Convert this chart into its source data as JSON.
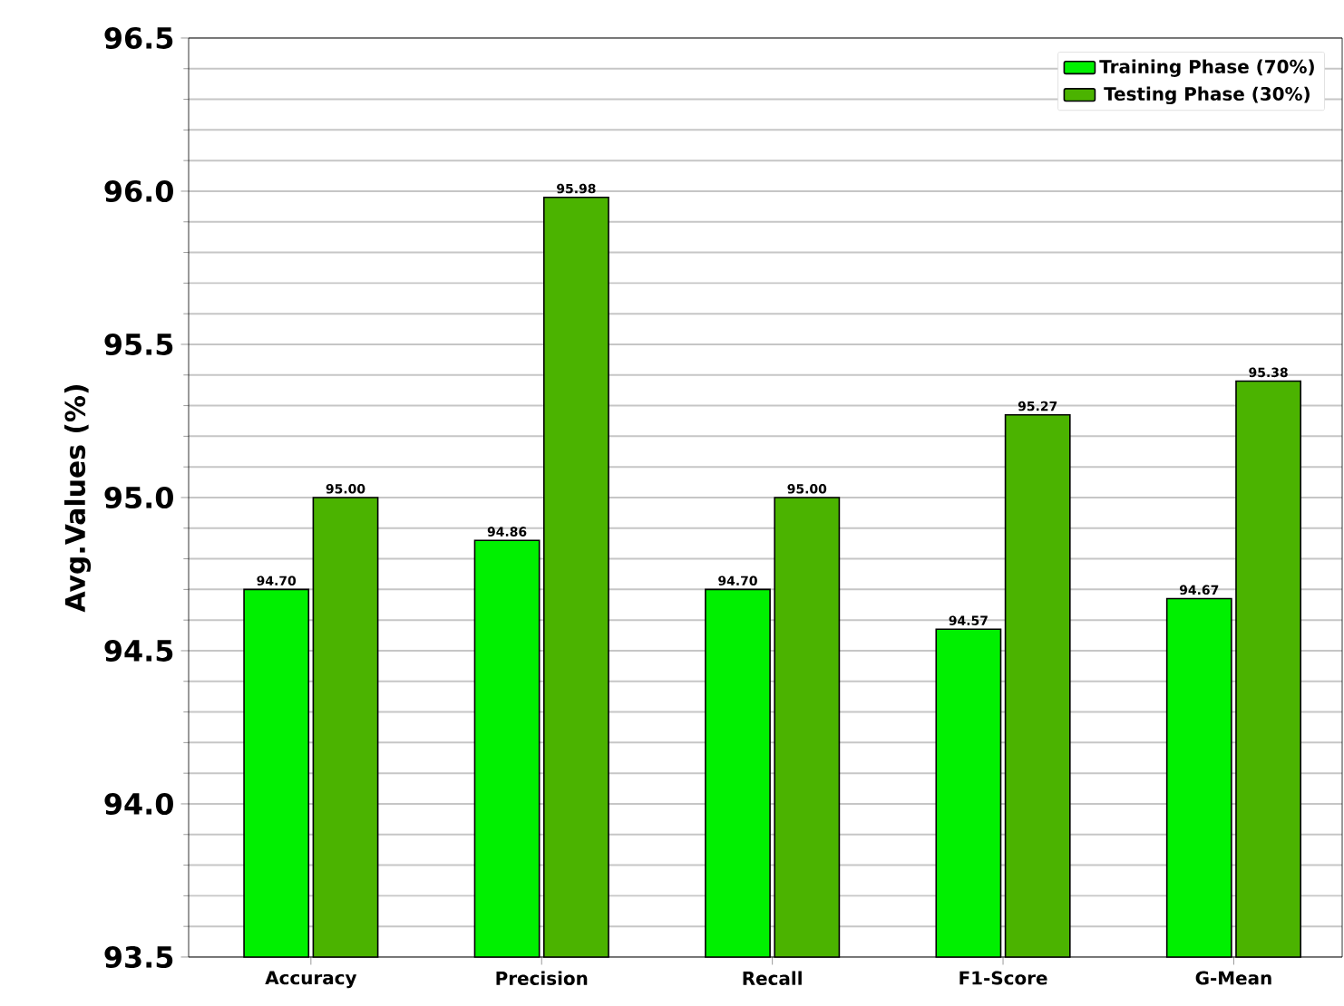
{
  "chart_data": {
    "type": "bar",
    "ylabel": "Avg.Values (%)",
    "categories": [
      "Accuracy",
      "Precision",
      "Recall",
      "F1-Score",
      "G-Mean"
    ],
    "series": [
      {
        "name": "Training Phase (70%)",
        "color": "#00f000",
        "values": [
          94.7,
          94.86,
          94.7,
          94.57,
          94.67
        ],
        "value_labels": [
          "94.70",
          "94.86",
          "94.70",
          "94.57",
          "94.67"
        ]
      },
      {
        "name": "Testing Phase (30%)",
        "color": "#4bb300",
        "values": [
          95.0,
          95.98,
          95.0,
          95.27,
          95.38
        ],
        "value_labels": [
          "95.00",
          "95.98",
          "95.00",
          "95.27",
          "95.38"
        ]
      }
    ],
    "ylim": [
      93.5,
      96.5
    ],
    "yticks": [
      93.5,
      {
        "value": 94,
        "label": "94.0"
      },
      94.5,
      {
        "value": 95,
        "label": "95.0"
      },
      95.5,
      {
        "value": 96,
        "label": "96.0"
      },
      96.5
    ],
    "grid": "y",
    "legend": "top right"
  }
}
